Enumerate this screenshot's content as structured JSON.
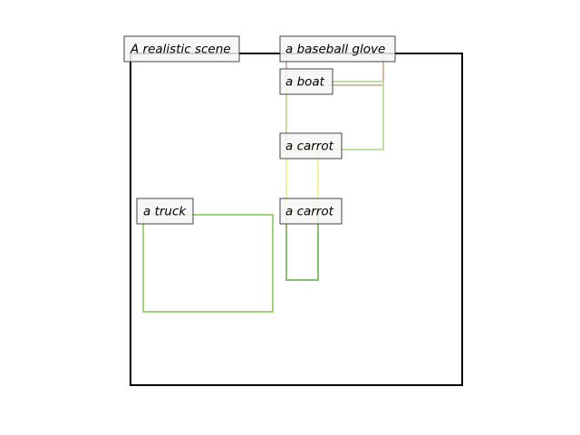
{
  "scene": {
    "caption": "A realistic scene",
    "frame_color": "#000000"
  },
  "objects": [
    {
      "label": "a baseball glove",
      "color": "#d6b8a8"
    },
    {
      "label": "a boat",
      "color": "#bfe0a0"
    },
    {
      "label": "a carrot",
      "color": "#f2f0a0"
    },
    {
      "label": "a carrot",
      "color": "#88c070"
    },
    {
      "label": "a truck",
      "color": "#a0d47a"
    }
  ]
}
